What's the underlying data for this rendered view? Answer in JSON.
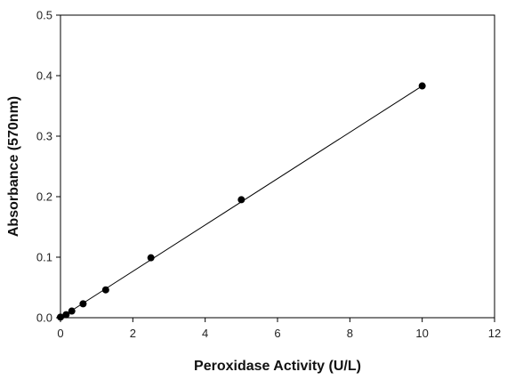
{
  "chart_data": {
    "type": "scatter",
    "title": "",
    "xlabel": "Peroxidase Activity (U/L)",
    "ylabel": "Absorbance (570nm)",
    "xlim": [
      0,
      12
    ],
    "ylim": [
      0,
      0.5
    ],
    "x_ticks": [
      0,
      2,
      4,
      6,
      8,
      10,
      12
    ],
    "y_ticks": [
      0.0,
      0.1,
      0.2,
      0.3,
      0.4,
      0.5
    ],
    "x_tick_labels": [
      "0",
      "2",
      "4",
      "6",
      "8",
      "10",
      "12"
    ],
    "y_tick_labels": [
      "0.0",
      "0.1",
      "0.2",
      "0.3",
      "0.4",
      "0.5"
    ],
    "grid": false,
    "legend": "none",
    "marker_color": "#000000",
    "line_color": "#000000",
    "series": [
      {
        "x": [
          0,
          0.156,
          0.3125,
          0.625,
          1.25,
          2.5,
          5,
          10
        ],
        "y": [
          0.001,
          0.005,
          0.011,
          0.023,
          0.046,
          0.099,
          0.195,
          0.383
        ]
      }
    ],
    "fit_line": {
      "x": [
        0,
        10
      ],
      "y": [
        0.0,
        0.383
      ]
    }
  }
}
